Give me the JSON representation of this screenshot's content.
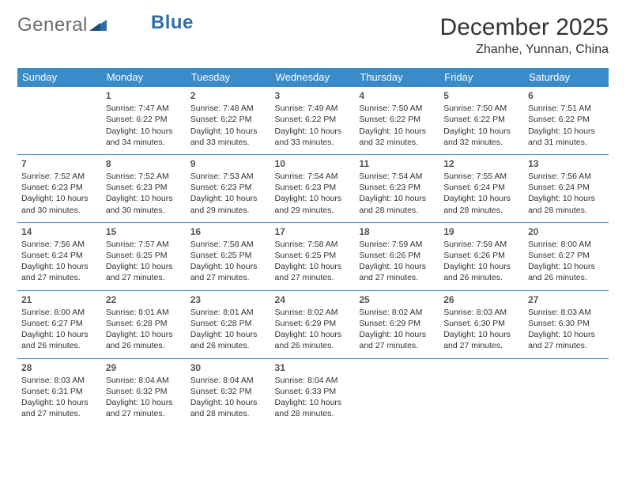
{
  "brand": {
    "part1": "General",
    "part2": "Blue"
  },
  "title": "December 2025",
  "location": "Zhanhe, Yunnan, China",
  "colors": {
    "header_bg": "#3b8bc9",
    "header_text": "#ffffff",
    "cell_border": "#3b8bc9",
    "text": "#333333",
    "brand_gray": "#6b6b6b",
    "brand_blue": "#2f6fa8"
  },
  "weekdays": [
    "Sunday",
    "Monday",
    "Tuesday",
    "Wednesday",
    "Thursday",
    "Friday",
    "Saturday"
  ],
  "grid_start_offset": 1,
  "days": [
    {
      "n": "1",
      "sunrise": "Sunrise: 7:47 AM",
      "sunset": "Sunset: 6:22 PM",
      "daylight": "Daylight: 10 hours and 34 minutes."
    },
    {
      "n": "2",
      "sunrise": "Sunrise: 7:48 AM",
      "sunset": "Sunset: 6:22 PM",
      "daylight": "Daylight: 10 hours and 33 minutes."
    },
    {
      "n": "3",
      "sunrise": "Sunrise: 7:49 AM",
      "sunset": "Sunset: 6:22 PM",
      "daylight": "Daylight: 10 hours and 33 minutes."
    },
    {
      "n": "4",
      "sunrise": "Sunrise: 7:50 AM",
      "sunset": "Sunset: 6:22 PM",
      "daylight": "Daylight: 10 hours and 32 minutes."
    },
    {
      "n": "5",
      "sunrise": "Sunrise: 7:50 AM",
      "sunset": "Sunset: 6:22 PM",
      "daylight": "Daylight: 10 hours and 32 minutes."
    },
    {
      "n": "6",
      "sunrise": "Sunrise: 7:51 AM",
      "sunset": "Sunset: 6:22 PM",
      "daylight": "Daylight: 10 hours and 31 minutes."
    },
    {
      "n": "7",
      "sunrise": "Sunrise: 7:52 AM",
      "sunset": "Sunset: 6:23 PM",
      "daylight": "Daylight: 10 hours and 30 minutes."
    },
    {
      "n": "8",
      "sunrise": "Sunrise: 7:52 AM",
      "sunset": "Sunset: 6:23 PM",
      "daylight": "Daylight: 10 hours and 30 minutes."
    },
    {
      "n": "9",
      "sunrise": "Sunrise: 7:53 AM",
      "sunset": "Sunset: 6:23 PM",
      "daylight": "Daylight: 10 hours and 29 minutes."
    },
    {
      "n": "10",
      "sunrise": "Sunrise: 7:54 AM",
      "sunset": "Sunset: 6:23 PM",
      "daylight": "Daylight: 10 hours and 29 minutes."
    },
    {
      "n": "11",
      "sunrise": "Sunrise: 7:54 AM",
      "sunset": "Sunset: 6:23 PM",
      "daylight": "Daylight: 10 hours and 28 minutes."
    },
    {
      "n": "12",
      "sunrise": "Sunrise: 7:55 AM",
      "sunset": "Sunset: 6:24 PM",
      "daylight": "Daylight: 10 hours and 28 minutes."
    },
    {
      "n": "13",
      "sunrise": "Sunrise: 7:56 AM",
      "sunset": "Sunset: 6:24 PM",
      "daylight": "Daylight: 10 hours and 28 minutes."
    },
    {
      "n": "14",
      "sunrise": "Sunrise: 7:56 AM",
      "sunset": "Sunset: 6:24 PM",
      "daylight": "Daylight: 10 hours and 27 minutes."
    },
    {
      "n": "15",
      "sunrise": "Sunrise: 7:57 AM",
      "sunset": "Sunset: 6:25 PM",
      "daylight": "Daylight: 10 hours and 27 minutes."
    },
    {
      "n": "16",
      "sunrise": "Sunrise: 7:58 AM",
      "sunset": "Sunset: 6:25 PM",
      "daylight": "Daylight: 10 hours and 27 minutes."
    },
    {
      "n": "17",
      "sunrise": "Sunrise: 7:58 AM",
      "sunset": "Sunset: 6:25 PM",
      "daylight": "Daylight: 10 hours and 27 minutes."
    },
    {
      "n": "18",
      "sunrise": "Sunrise: 7:59 AM",
      "sunset": "Sunset: 6:26 PM",
      "daylight": "Daylight: 10 hours and 27 minutes."
    },
    {
      "n": "19",
      "sunrise": "Sunrise: 7:59 AM",
      "sunset": "Sunset: 6:26 PM",
      "daylight": "Daylight: 10 hours and 26 minutes."
    },
    {
      "n": "20",
      "sunrise": "Sunrise: 8:00 AM",
      "sunset": "Sunset: 6:27 PM",
      "daylight": "Daylight: 10 hours and 26 minutes."
    },
    {
      "n": "21",
      "sunrise": "Sunrise: 8:00 AM",
      "sunset": "Sunset: 6:27 PM",
      "daylight": "Daylight: 10 hours and 26 minutes."
    },
    {
      "n": "22",
      "sunrise": "Sunrise: 8:01 AM",
      "sunset": "Sunset: 6:28 PM",
      "daylight": "Daylight: 10 hours and 26 minutes."
    },
    {
      "n": "23",
      "sunrise": "Sunrise: 8:01 AM",
      "sunset": "Sunset: 6:28 PM",
      "daylight": "Daylight: 10 hours and 26 minutes."
    },
    {
      "n": "24",
      "sunrise": "Sunrise: 8:02 AM",
      "sunset": "Sunset: 6:29 PM",
      "daylight": "Daylight: 10 hours and 26 minutes."
    },
    {
      "n": "25",
      "sunrise": "Sunrise: 8:02 AM",
      "sunset": "Sunset: 6:29 PM",
      "daylight": "Daylight: 10 hours and 27 minutes."
    },
    {
      "n": "26",
      "sunrise": "Sunrise: 8:03 AM",
      "sunset": "Sunset: 6:30 PM",
      "daylight": "Daylight: 10 hours and 27 minutes."
    },
    {
      "n": "27",
      "sunrise": "Sunrise: 8:03 AM",
      "sunset": "Sunset: 6:30 PM",
      "daylight": "Daylight: 10 hours and 27 minutes."
    },
    {
      "n": "28",
      "sunrise": "Sunrise: 8:03 AM",
      "sunset": "Sunset: 6:31 PM",
      "daylight": "Daylight: 10 hours and 27 minutes."
    },
    {
      "n": "29",
      "sunrise": "Sunrise: 8:04 AM",
      "sunset": "Sunset: 6:32 PM",
      "daylight": "Daylight: 10 hours and 27 minutes."
    },
    {
      "n": "30",
      "sunrise": "Sunrise: 8:04 AM",
      "sunset": "Sunset: 6:32 PM",
      "daylight": "Daylight: 10 hours and 28 minutes."
    },
    {
      "n": "31",
      "sunrise": "Sunrise: 8:04 AM",
      "sunset": "Sunset: 6:33 PM",
      "daylight": "Daylight: 10 hours and 28 minutes."
    }
  ]
}
